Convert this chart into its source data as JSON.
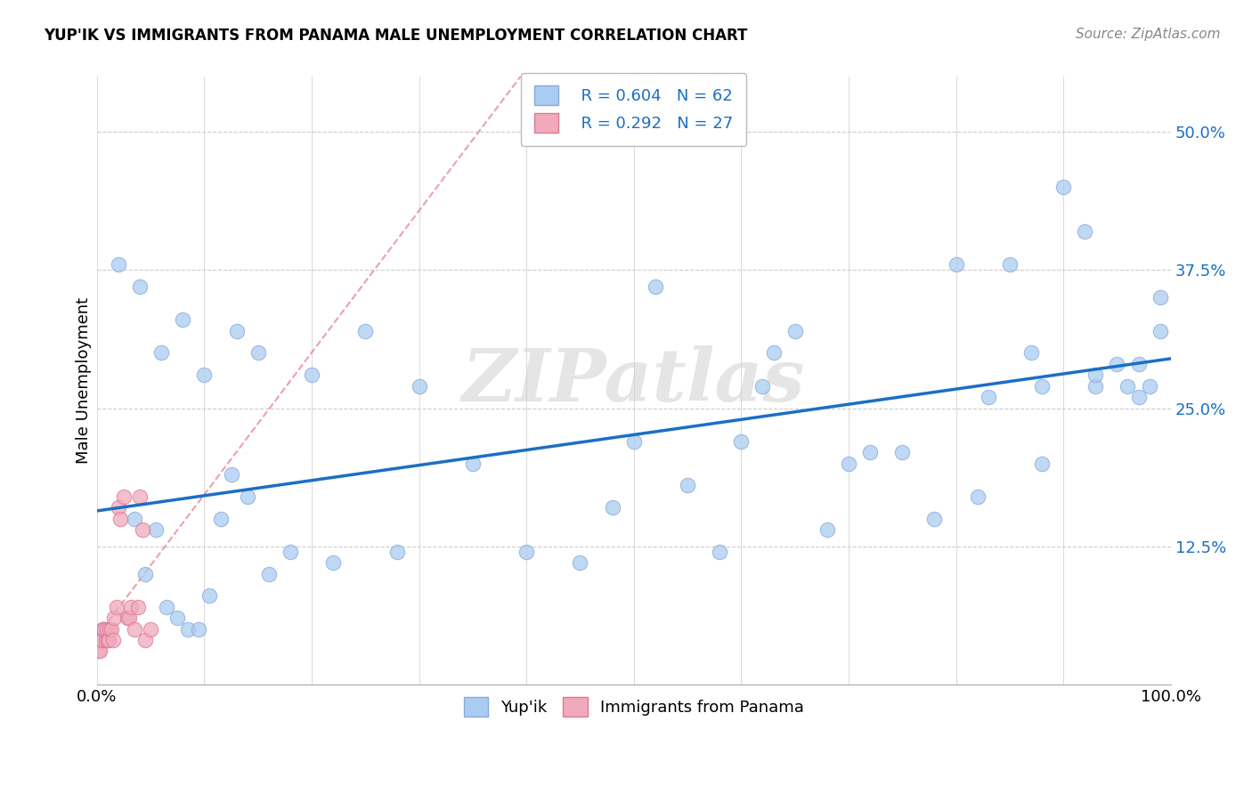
{
  "title": "YUP'IK VS IMMIGRANTS FROM PANAMA MALE UNEMPLOYMENT CORRELATION CHART",
  "source": "Source: ZipAtlas.com",
  "ylabel": "Male Unemployment",
  "xlim": [
    0.0,
    1.0
  ],
  "ylim": [
    0.0,
    0.55
  ],
  "yticks": [
    0.0,
    0.125,
    0.25,
    0.375,
    0.5
  ],
  "ytick_labels": [
    "",
    "12.5%",
    "25.0%",
    "37.5%",
    "50.0%"
  ],
  "background_color": "#ffffff",
  "watermark": "ZIPatlas",
  "legend_r1": "R = 0.604",
  "legend_n1": "N = 62",
  "legend_r2": "R = 0.292",
  "legend_n2": "N = 27",
  "color_yupik": "#aaccf0",
  "color_panama": "#f0aabb",
  "line_color_yupik": "#1a6fc4",
  "line_color_panama": "#e06080",
  "scatter_edge_yupik": "#88aadd",
  "scatter_edge_panama": "#dd7799",
  "grid_color": "#cccccc",
  "yupik_x": [
    0.02,
    0.04,
    0.06,
    0.08,
    0.1,
    0.13,
    0.15,
    0.2,
    0.25,
    0.3,
    0.5,
    0.52,
    0.55,
    0.6,
    0.62,
    0.63,
    0.65,
    0.7,
    0.75,
    0.8,
    0.82,
    0.85,
    0.87,
    0.88,
    0.9,
    0.92,
    0.93,
    0.95,
    0.96,
    0.97,
    0.98,
    0.99,
    0.035,
    0.045,
    0.055,
    0.065,
    0.075,
    0.085,
    0.095,
    0.105,
    0.115,
    0.125,
    0.14,
    0.16,
    0.18,
    0.22,
    0.28,
    0.35,
    0.4,
    0.45,
    0.48,
    0.58,
    0.68,
    0.72,
    0.78,
    0.83,
    0.88,
    0.93,
    0.97,
    0.99,
    0.005,
    0.008
  ],
  "yupik_y": [
    0.38,
    0.36,
    0.3,
    0.33,
    0.28,
    0.32,
    0.3,
    0.28,
    0.32,
    0.27,
    0.22,
    0.36,
    0.18,
    0.22,
    0.27,
    0.3,
    0.32,
    0.2,
    0.21,
    0.38,
    0.17,
    0.38,
    0.3,
    0.27,
    0.45,
    0.41,
    0.27,
    0.29,
    0.27,
    0.29,
    0.27,
    0.32,
    0.15,
    0.1,
    0.14,
    0.07,
    0.06,
    0.05,
    0.05,
    0.08,
    0.15,
    0.19,
    0.17,
    0.1,
    0.12,
    0.11,
    0.12,
    0.2,
    0.12,
    0.11,
    0.16,
    0.12,
    0.14,
    0.21,
    0.15,
    0.26,
    0.2,
    0.28,
    0.26,
    0.35,
    0.05,
    0.04
  ],
  "panama_x": [
    0.002,
    0.003,
    0.004,
    0.005,
    0.006,
    0.007,
    0.008,
    0.009,
    0.01,
    0.011,
    0.012,
    0.013,
    0.015,
    0.016,
    0.018,
    0.02,
    0.022,
    0.025,
    0.028,
    0.03,
    0.032,
    0.035,
    0.038,
    0.04,
    0.042,
    0.045,
    0.05
  ],
  "panama_y": [
    0.03,
    0.03,
    0.04,
    0.04,
    0.05,
    0.05,
    0.04,
    0.05,
    0.04,
    0.04,
    0.05,
    0.05,
    0.04,
    0.06,
    0.07,
    0.16,
    0.15,
    0.17,
    0.06,
    0.06,
    0.07,
    0.05,
    0.07,
    0.17,
    0.14,
    0.04,
    0.05
  ]
}
